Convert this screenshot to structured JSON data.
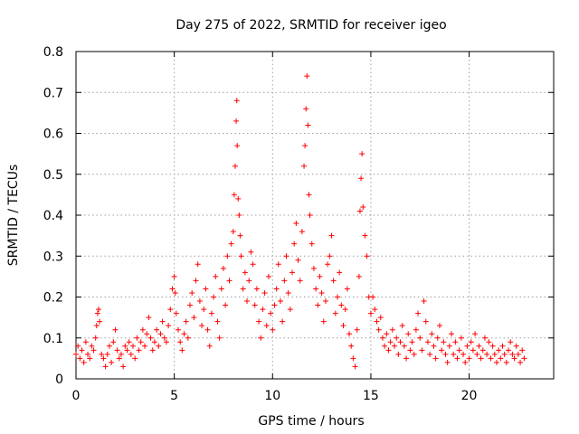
{
  "chart_data": {
    "type": "scatter",
    "title": "Day 275 of 2022, SRMTID for receiver igeo",
    "xlabel": "GPS time / hours",
    "ylabel": "SRMTID / TECUs",
    "xlim": [
      0,
      24.3
    ],
    "ylim": [
      0,
      0.8
    ],
    "grid": true,
    "marker": "+",
    "marker_color": "#ff0000",
    "x_ticks": [
      0,
      5,
      10,
      15,
      20
    ],
    "x_tick_labels": [
      "0",
      "5",
      "10",
      "15",
      "20"
    ],
    "y_ticks": [
      0,
      0.1,
      0.2,
      0.3,
      0.4,
      0.5,
      0.6,
      0.7,
      0.8
    ],
    "y_tick_labels": [
      "0",
      "0.1",
      "0.2",
      "0.3",
      "0.4",
      "0.5",
      "0.6",
      "0.7",
      "0.8"
    ],
    "series": [
      {
        "name": "SRMTID",
        "points": [
          [
            0.0,
            0.06
          ],
          [
            0.1,
            0.08
          ],
          [
            0.2,
            0.05
          ],
          [
            0.3,
            0.07
          ],
          [
            0.4,
            0.04
          ],
          [
            0.5,
            0.09
          ],
          [
            0.6,
            0.06
          ],
          [
            0.7,
            0.05
          ],
          [
            0.8,
            0.08
          ],
          [
            0.9,
            0.07
          ],
          [
            1.0,
            0.1
          ],
          [
            1.05,
            0.13
          ],
          [
            1.1,
            0.16
          ],
          [
            1.15,
            0.17
          ],
          [
            1.2,
            0.14
          ],
          [
            1.3,
            0.06
          ],
          [
            1.4,
            0.05
          ],
          [
            1.5,
            0.03
          ],
          [
            1.6,
            0.06
          ],
          [
            1.7,
            0.08
          ],
          [
            1.8,
            0.04
          ],
          [
            1.9,
            0.09
          ],
          [
            2.0,
            0.12
          ],
          [
            2.1,
            0.07
          ],
          [
            2.2,
            0.05
          ],
          [
            2.3,
            0.06
          ],
          [
            2.4,
            0.03
          ],
          [
            2.5,
            0.08
          ],
          [
            2.6,
            0.07
          ],
          [
            2.7,
            0.09
          ],
          [
            2.8,
            0.06
          ],
          [
            2.9,
            0.08
          ],
          [
            3.0,
            0.05
          ],
          [
            3.1,
            0.1
          ],
          [
            3.2,
            0.07
          ],
          [
            3.3,
            0.09
          ],
          [
            3.4,
            0.12
          ],
          [
            3.5,
            0.08
          ],
          [
            3.6,
            0.11
          ],
          [
            3.7,
            0.15
          ],
          [
            3.8,
            0.1
          ],
          [
            3.9,
            0.07
          ],
          [
            4.0,
            0.09
          ],
          [
            4.1,
            0.12
          ],
          [
            4.2,
            0.08
          ],
          [
            4.3,
            0.11
          ],
          [
            4.4,
            0.14
          ],
          [
            4.5,
            0.1
          ],
          [
            4.6,
            0.09
          ],
          [
            4.7,
            0.13
          ],
          [
            4.8,
            0.17
          ],
          [
            4.9,
            0.22
          ],
          [
            5.0,
            0.25
          ],
          [
            5.05,
            0.21
          ],
          [
            5.1,
            0.16
          ],
          [
            5.2,
            0.12
          ],
          [
            5.3,
            0.09
          ],
          [
            5.4,
            0.07
          ],
          [
            5.5,
            0.11
          ],
          [
            5.6,
            0.14
          ],
          [
            5.7,
            0.1
          ],
          [
            5.8,
            0.18
          ],
          [
            5.9,
            0.21
          ],
          [
            6.0,
            0.15
          ],
          [
            6.1,
            0.24
          ],
          [
            6.2,
            0.28
          ],
          [
            6.3,
            0.19
          ],
          [
            6.4,
            0.13
          ],
          [
            6.5,
            0.17
          ],
          [
            6.6,
            0.22
          ],
          [
            6.7,
            0.12
          ],
          [
            6.8,
            0.08
          ],
          [
            6.9,
            0.16
          ],
          [
            7.0,
            0.2
          ],
          [
            7.1,
            0.25
          ],
          [
            7.2,
            0.14
          ],
          [
            7.3,
            0.1
          ],
          [
            7.4,
            0.22
          ],
          [
            7.5,
            0.27
          ],
          [
            7.6,
            0.18
          ],
          [
            7.7,
            0.3
          ],
          [
            7.8,
            0.24
          ],
          [
            7.9,
            0.33
          ],
          [
            8.0,
            0.36
          ],
          [
            8.05,
            0.45
          ],
          [
            8.1,
            0.52
          ],
          [
            8.15,
            0.63
          ],
          [
            8.18,
            0.68
          ],
          [
            8.2,
            0.57
          ],
          [
            8.25,
            0.44
          ],
          [
            8.3,
            0.4
          ],
          [
            8.35,
            0.35
          ],
          [
            8.4,
            0.3
          ],
          [
            8.5,
            0.22
          ],
          [
            8.6,
            0.26
          ],
          [
            8.7,
            0.19
          ],
          [
            8.8,
            0.24
          ],
          [
            8.9,
            0.31
          ],
          [
            9.0,
            0.28
          ],
          [
            9.1,
            0.18
          ],
          [
            9.2,
            0.22
          ],
          [
            9.3,
            0.14
          ],
          [
            9.4,
            0.1
          ],
          [
            9.5,
            0.17
          ],
          [
            9.6,
            0.21
          ],
          [
            9.7,
            0.13
          ],
          [
            9.8,
            0.25
          ],
          [
            9.9,
            0.16
          ],
          [
            10.0,
            0.12
          ],
          [
            10.1,
            0.18
          ],
          [
            10.2,
            0.22
          ],
          [
            10.3,
            0.28
          ],
          [
            10.4,
            0.19
          ],
          [
            10.5,
            0.14
          ],
          [
            10.6,
            0.24
          ],
          [
            10.7,
            0.3
          ],
          [
            10.8,
            0.21
          ],
          [
            10.9,
            0.17
          ],
          [
            11.0,
            0.26
          ],
          [
            11.1,
            0.33
          ],
          [
            11.2,
            0.38
          ],
          [
            11.3,
            0.29
          ],
          [
            11.4,
            0.24
          ],
          [
            11.5,
            0.36
          ],
          [
            11.6,
            0.52
          ],
          [
            11.65,
            0.57
          ],
          [
            11.7,
            0.66
          ],
          [
            11.75,
            0.74
          ],
          [
            11.8,
            0.62
          ],
          [
            11.85,
            0.45
          ],
          [
            11.9,
            0.4
          ],
          [
            12.0,
            0.33
          ],
          [
            12.1,
            0.27
          ],
          [
            12.2,
            0.22
          ],
          [
            12.3,
            0.18
          ],
          [
            12.4,
            0.25
          ],
          [
            12.5,
            0.21
          ],
          [
            12.6,
            0.14
          ],
          [
            12.7,
            0.19
          ],
          [
            12.8,
            0.28
          ],
          [
            12.9,
            0.3
          ],
          [
            13.0,
            0.35
          ],
          [
            13.1,
            0.24
          ],
          [
            13.2,
            0.16
          ],
          [
            13.3,
            0.2
          ],
          [
            13.4,
            0.26
          ],
          [
            13.5,
            0.18
          ],
          [
            13.6,
            0.13
          ],
          [
            13.7,
            0.17
          ],
          [
            13.8,
            0.22
          ],
          [
            13.9,
            0.11
          ],
          [
            14.0,
            0.08
          ],
          [
            14.1,
            0.05
          ],
          [
            14.2,
            0.03
          ],
          [
            14.3,
            0.12
          ],
          [
            14.4,
            0.25
          ],
          [
            14.45,
            0.41
          ],
          [
            14.5,
            0.49
          ],
          [
            14.55,
            0.55
          ],
          [
            14.6,
            0.42
          ],
          [
            14.7,
            0.35
          ],
          [
            14.8,
            0.3
          ],
          [
            14.9,
            0.2
          ],
          [
            15.0,
            0.16
          ],
          [
            15.1,
            0.2
          ],
          [
            15.2,
            0.17
          ],
          [
            15.3,
            0.14
          ],
          [
            15.4,
            0.12
          ],
          [
            15.5,
            0.15
          ],
          [
            15.6,
            0.1
          ],
          [
            15.7,
            0.08
          ],
          [
            15.8,
            0.11
          ],
          [
            15.9,
            0.07
          ],
          [
            16.0,
            0.09
          ],
          [
            16.1,
            0.12
          ],
          [
            16.2,
            0.08
          ],
          [
            16.3,
            0.1
          ],
          [
            16.4,
            0.06
          ],
          [
            16.5,
            0.09
          ],
          [
            16.6,
            0.13
          ],
          [
            16.7,
            0.08
          ],
          [
            16.8,
            0.05
          ],
          [
            16.9,
            0.11
          ],
          [
            17.0,
            0.07
          ],
          [
            17.1,
            0.09
          ],
          [
            17.2,
            0.06
          ],
          [
            17.3,
            0.12
          ],
          [
            17.4,
            0.16
          ],
          [
            17.5,
            0.1
          ],
          [
            17.6,
            0.07
          ],
          [
            17.7,
            0.19
          ],
          [
            17.8,
            0.14
          ],
          [
            17.9,
            0.09
          ],
          [
            18.0,
            0.06
          ],
          [
            18.1,
            0.11
          ],
          [
            18.2,
            0.08
          ],
          [
            18.3,
            0.05
          ],
          [
            18.4,
            0.1
          ],
          [
            18.5,
            0.13
          ],
          [
            18.6,
            0.07
          ],
          [
            18.7,
            0.09
          ],
          [
            18.8,
            0.06
          ],
          [
            18.9,
            0.04
          ],
          [
            19.0,
            0.08
          ],
          [
            19.1,
            0.11
          ],
          [
            19.2,
            0.06
          ],
          [
            19.3,
            0.09
          ],
          [
            19.4,
            0.05
          ],
          [
            19.5,
            0.07
          ],
          [
            19.6,
            0.1
          ],
          [
            19.7,
            0.06
          ],
          [
            19.8,
            0.04
          ],
          [
            19.9,
            0.08
          ],
          [
            20.0,
            0.05
          ],
          [
            20.1,
            0.09
          ],
          [
            20.2,
            0.07
          ],
          [
            20.3,
            0.11
          ],
          [
            20.4,
            0.06
          ],
          [
            20.5,
            0.08
          ],
          [
            20.6,
            0.05
          ],
          [
            20.7,
            0.07
          ],
          [
            20.8,
            0.1
          ],
          [
            20.9,
            0.06
          ],
          [
            21.0,
            0.09
          ],
          [
            21.1,
            0.05
          ],
          [
            21.2,
            0.08
          ],
          [
            21.3,
            0.06
          ],
          [
            21.4,
            0.04
          ],
          [
            21.5,
            0.07
          ],
          [
            21.6,
            0.05
          ],
          [
            21.7,
            0.08
          ],
          [
            21.8,
            0.06
          ],
          [
            21.9,
            0.04
          ],
          [
            22.0,
            0.07
          ],
          [
            22.1,
            0.09
          ],
          [
            22.2,
            0.06
          ],
          [
            22.3,
            0.05
          ],
          [
            22.4,
            0.08
          ],
          [
            22.5,
            0.06
          ],
          [
            22.6,
            0.04
          ],
          [
            22.7,
            0.07
          ],
          [
            22.8,
            0.05
          ]
        ]
      }
    ]
  }
}
